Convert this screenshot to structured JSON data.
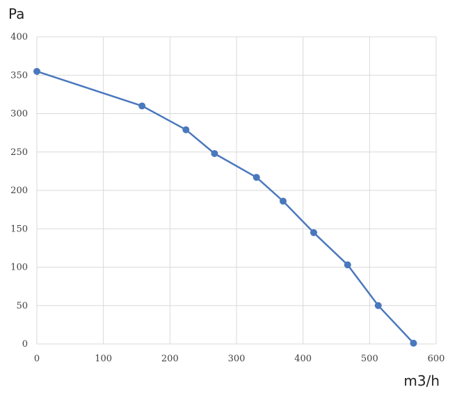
{
  "chart_data": {
    "type": "line",
    "title": "",
    "ylabel": "Pa",
    "xlabel": "m3/h",
    "xlim": [
      0,
      600
    ],
    "ylim": [
      0,
      400
    ],
    "x_ticks": [
      0,
      100,
      200,
      300,
      400,
      500,
      600
    ],
    "y_ticks": [
      0,
      50,
      100,
      150,
      200,
      250,
      300,
      350,
      400
    ],
    "grid": true,
    "legend": "none",
    "series": [
      {
        "color": "#4a78bd",
        "points": [
          {
            "x": 0,
            "y": 355
          },
          {
            "x": 158,
            "y": 310
          },
          {
            "x": 224,
            "y": 279
          },
          {
            "x": 267,
            "y": 248
          },
          {
            "x": 330,
            "y": 217
          },
          {
            "x": 370,
            "y": 186
          },
          {
            "x": 416,
            "y": 145
          },
          {
            "x": 467,
            "y": 103
          },
          {
            "x": 513,
            "y": 50
          },
          {
            "x": 566,
            "y": 1
          }
        ]
      }
    ]
  }
}
